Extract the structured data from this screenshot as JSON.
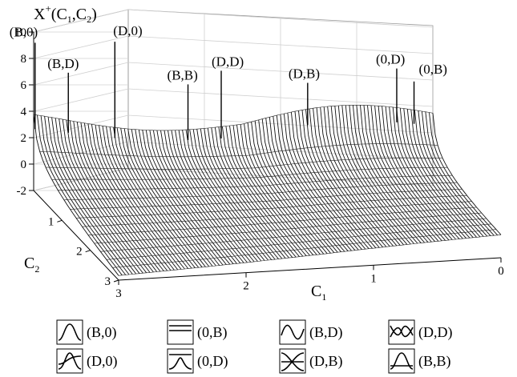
{
  "chart_data": {
    "type": "surface-3d",
    "z_title": "X",
    "z_title_sup": "+",
    "z_title_args": [
      "(C",
      "1",
      ",C",
      "2",
      ")"
    ],
    "x_title": "C",
    "x_title_sub": "1",
    "y_title": "C",
    "y_title_sub": "2",
    "z_ticks": [
      "10",
      "8",
      "6",
      "4",
      "2",
      "0",
      "-2"
    ],
    "x_ticks": [
      "3",
      "2",
      "1",
      "0"
    ],
    "y_ticks": [
      "1",
      "2",
      "3"
    ],
    "zlim": [
      -2,
      10
    ],
    "xlim": [
      0,
      3
    ],
    "ylim": [
      0,
      3
    ],
    "peaks": [
      {
        "label": "(B,0)",
        "C1": 3.0,
        "C2": 0.05,
        "value": 9.3
      },
      {
        "label": "(B,D)",
        "C1": 2.75,
        "C2": 0.05,
        "value": 7.0
      },
      {
        "label": "(D,0)",
        "C1": 2.4,
        "C2": 0.05,
        "value": 9.3
      },
      {
        "label": "(B,B)",
        "C1": 1.85,
        "C2": 0.05,
        "value": 6.0
      },
      {
        "label": "(D,D)",
        "C1": 1.6,
        "C2": 0.05,
        "value": 7.0
      },
      {
        "label": "(D,B)",
        "C1": 0.95,
        "C2": 0.05,
        "value": 6.0
      },
      {
        "label": "(0,D)",
        "C1": 0.28,
        "C2": 0.05,
        "value": 7.0
      },
      {
        "label": "(0,B)",
        "C1": 0.15,
        "C2": 0.05,
        "value": 6.0
      }
    ]
  },
  "legend": [
    {
      "label": "(B,0)",
      "icon": "bump-icon"
    },
    {
      "label": "(0,B)",
      "icon": "flat-lines-icon"
    },
    {
      "label": "(B,D)",
      "icon": "bump-dip-icon"
    },
    {
      "label": "(D,D)",
      "icon": "double-wave-icon"
    },
    {
      "label": "(D,0)",
      "icon": "s-curve-icon"
    },
    {
      "label": "(0,D)",
      "icon": "step-icon"
    },
    {
      "label": "(D,B)",
      "icon": "cross-wave-icon"
    },
    {
      "label": "(B,B)",
      "icon": "bump-line-icon"
    }
  ]
}
